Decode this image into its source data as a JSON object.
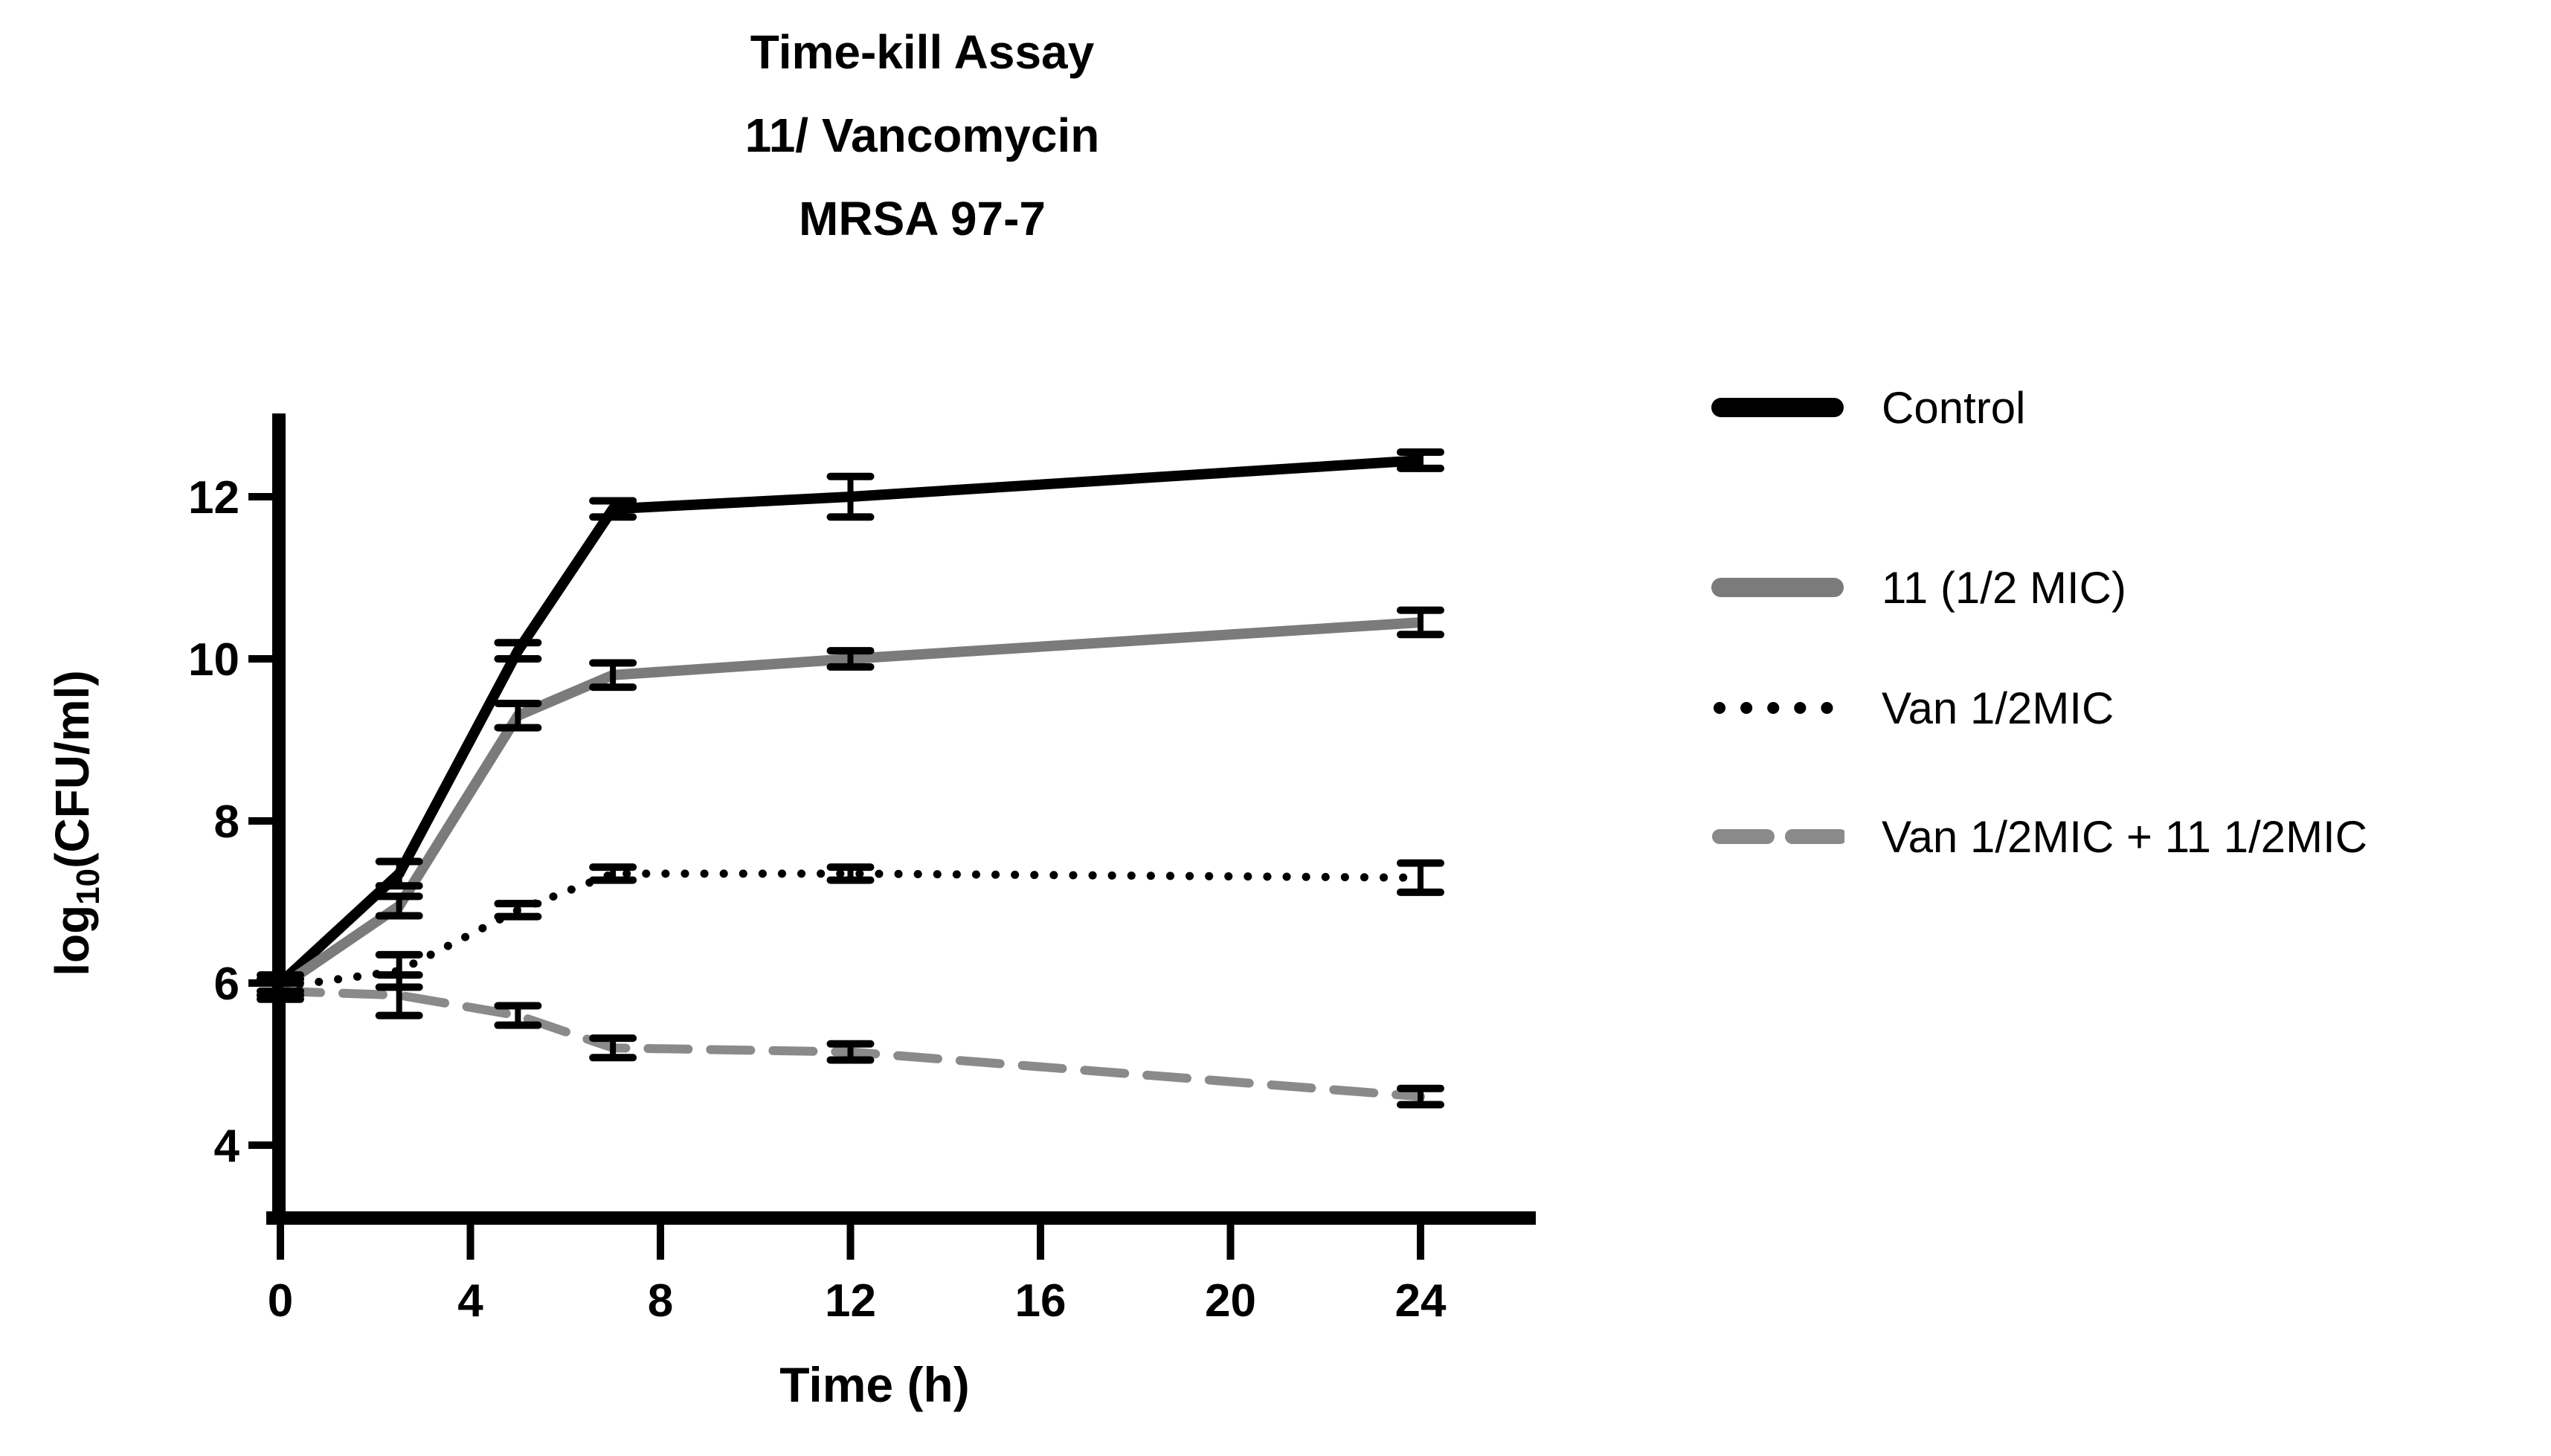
{
  "chart_data": {
    "type": "line",
    "title_lines": [
      "Time-kill Assay",
      "11/ Vancomycin",
      "MRSA 97-7"
    ],
    "xlabel": "Time (h)",
    "ylabel": "log10(CFU/ml)",
    "ylabel_parts": {
      "prefix": "log",
      "sub": "10",
      "suffix": "(CFU/ml)"
    },
    "x_ticks": [
      0,
      4,
      8,
      12,
      16,
      20,
      24
    ],
    "y_ticks": [
      4,
      6,
      8,
      10,
      12
    ],
    "xlim": [
      0,
      26.4
    ],
    "ylim": [
      3.0,
      13.0
    ],
    "grid": false,
    "legend_position": "right",
    "x": [
      0,
      2.5,
      5,
      7,
      12,
      24
    ],
    "series": [
      {
        "name": "Control",
        "color": "#000000",
        "style": "solid",
        "values": [
          6.0,
          7.35,
          10.1,
          11.85,
          12.0,
          12.45
        ],
        "errors": [
          0.1,
          0.15,
          0.1,
          0.1,
          0.25,
          0.1
        ]
      },
      {
        "name": "11 (1/2 MIC)",
        "color": "#7b7b7b",
        "style": "solid",
        "values": [
          5.95,
          6.95,
          9.3,
          9.8,
          10.0,
          10.45
        ],
        "errors": [
          0.1,
          0.12,
          0.15,
          0.15,
          0.1,
          0.15
        ]
      },
      {
        "name": "Van 1/2MIC",
        "color": "#000000",
        "style": "dotted",
        "values": [
          5.95,
          6.15,
          6.9,
          7.35,
          7.35,
          7.3
        ],
        "errors": [
          0.1,
          0.2,
          0.08,
          0.08,
          0.08,
          0.18
        ]
      },
      {
        "name": "Van 1/2MIC + 11 1/2MIC",
        "color": "#8a8a8a",
        "style": "dashed",
        "values": [
          5.9,
          5.85,
          5.6,
          5.2,
          5.15,
          4.6
        ],
        "errors": [
          0.1,
          0.25,
          0.12,
          0.12,
          0.1,
          0.1
        ]
      }
    ],
    "error_bar_color": "#000000"
  }
}
